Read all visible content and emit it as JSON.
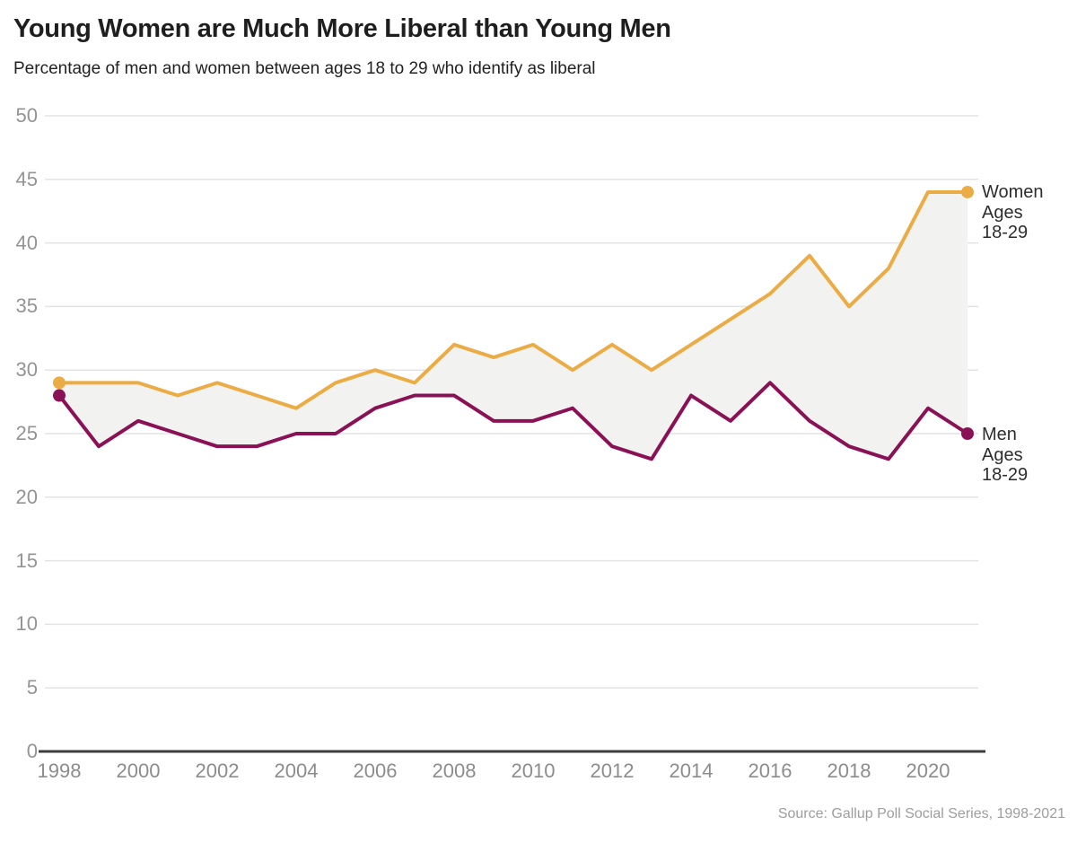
{
  "header": {
    "title": "Young Women are Much More Liberal than Young Men",
    "subtitle": "Percentage of men and women between ages 18 to 29 who identify as liberal"
  },
  "source_note": "Source: Gallup Poll Social Series, 1998-2021",
  "legend": {
    "women": {
      "lines": [
        "Women",
        "Ages",
        "18-29"
      ]
    },
    "men": {
      "lines": [
        "Men",
        "Ages",
        "18-29"
      ]
    }
  },
  "colors": {
    "women_line": "#EBAC45",
    "men_line": "#8B1156",
    "band_fill": "#F2F2F1",
    "gridline": "#E3E3E3",
    "axis_line": "#3C3C3C"
  },
  "chart_data": {
    "type": "line",
    "title": "Young Women are Much More Liberal than Young Men",
    "subtitle": "Percentage of men and women between ages 18 to 29 who identify as liberal",
    "xlabel": "",
    "ylabel": "",
    "x": [
      1998,
      1999,
      2000,
      2001,
      2002,
      2003,
      2004,
      2005,
      2006,
      2007,
      2008,
      2009,
      2010,
      2011,
      2012,
      2013,
      2014,
      2015,
      2016,
      2017,
      2018,
      2019,
      2020,
      2021
    ],
    "series": [
      {
        "name": "Women Ages 18-29",
        "color": "#EBAC45",
        "values": [
          29,
          29,
          29,
          28,
          29,
          28,
          27,
          29,
          30,
          29,
          32,
          31,
          32,
          30,
          32,
          30,
          32,
          34,
          36,
          39,
          35,
          38,
          44,
          44
        ]
      },
      {
        "name": "Men Ages 18-29",
        "color": "#8B1156",
        "values": [
          28,
          24,
          26,
          25,
          24,
          24,
          25,
          25,
          27,
          28,
          28,
          26,
          26,
          27,
          24,
          23,
          28,
          26,
          29,
          26,
          24,
          23,
          27,
          25
        ]
      }
    ],
    "band_fill_between_series": true,
    "endpoint_dots": "first-and-last",
    "xlim": [
      1998,
      2021
    ],
    "ylim": [
      0,
      50
    ],
    "yticks": [
      0,
      5,
      10,
      15,
      20,
      25,
      30,
      35,
      40,
      45,
      50
    ],
    "xticks": [
      1998,
      2000,
      2002,
      2004,
      2006,
      2008,
      2010,
      2012,
      2014,
      2016,
      2018,
      2020
    ],
    "grid": "horizontal",
    "legend_position": "right-of-line-ends"
  }
}
